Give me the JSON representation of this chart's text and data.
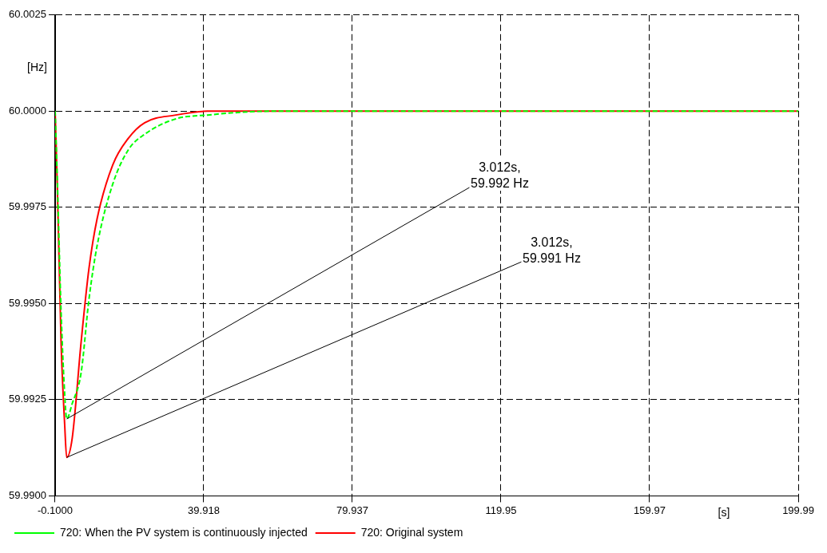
{
  "chart_data": {
    "type": "line",
    "xlabel": "[s]",
    "ylabel": "[Hz]",
    "xlim": [
      -0.1,
      199.99
    ],
    "xticks": [
      {
        "value": -0.1,
        "label": "-0.1000"
      },
      39.918,
      79.937,
      119.95,
      159.97,
      199.99
    ],
    "ylim": [
      59.99,
      60.0025
    ],
    "yticks": [
      {
        "value": 59.99,
        "label": "59.9900"
      },
      59.9925,
      {
        "value": 59.995,
        "label": "59.9950"
      },
      59.9975,
      {
        "value": 60,
        "label": "60.0000"
      },
      60.0025
    ],
    "grid": true,
    "legend": "bottom left",
    "marker": "none",
    "series": [
      {
        "name": "720: Original system",
        "color": "#ff0000",
        "line_style": "solid",
        "x": [
          -0.1,
          0.5,
          1.5,
          2.5,
          3.012,
          4.5,
          6.9,
          9.0,
          11.2,
          15.4,
          19.65,
          24.0,
          32.4,
          40.9,
          57.9,
          199.99
        ],
        "values": [
          60,
          59.998,
          59.994,
          59.9918,
          59.991,
          59.9915,
          59.994,
          59.9959,
          59.9972,
          59.9986,
          59.9993,
          59.9997,
          59.9999,
          60,
          60,
          60
        ]
      },
      {
        "name": "720: When the PV system is continuously injected",
        "color": "#00ff00",
        "line_style": "dashed",
        "x": [
          -0.1,
          0.5,
          1.5,
          2.5,
          3.012,
          4.5,
          6.9,
          9.0,
          11.2,
          15.4,
          19.65,
          24.0,
          32.4,
          40.9,
          57.9,
          199.99
        ],
        "values": [
          60,
          59.9982,
          59.9948,
          59.9926,
          59.992,
          59.9924,
          59.9932,
          59.9951,
          59.9965,
          59.9981,
          59.999,
          59.9994,
          59.9998,
          59.9999,
          60,
          60
        ]
      }
    ],
    "annotations": [
      {
        "text": "3.012s,\n59.992 Hz",
        "x": 3.012,
        "y": 59.992
      },
      {
        "text": "3.012s,\n59.991 Hz",
        "x": 3.012,
        "y": 59.991
      }
    ]
  }
}
